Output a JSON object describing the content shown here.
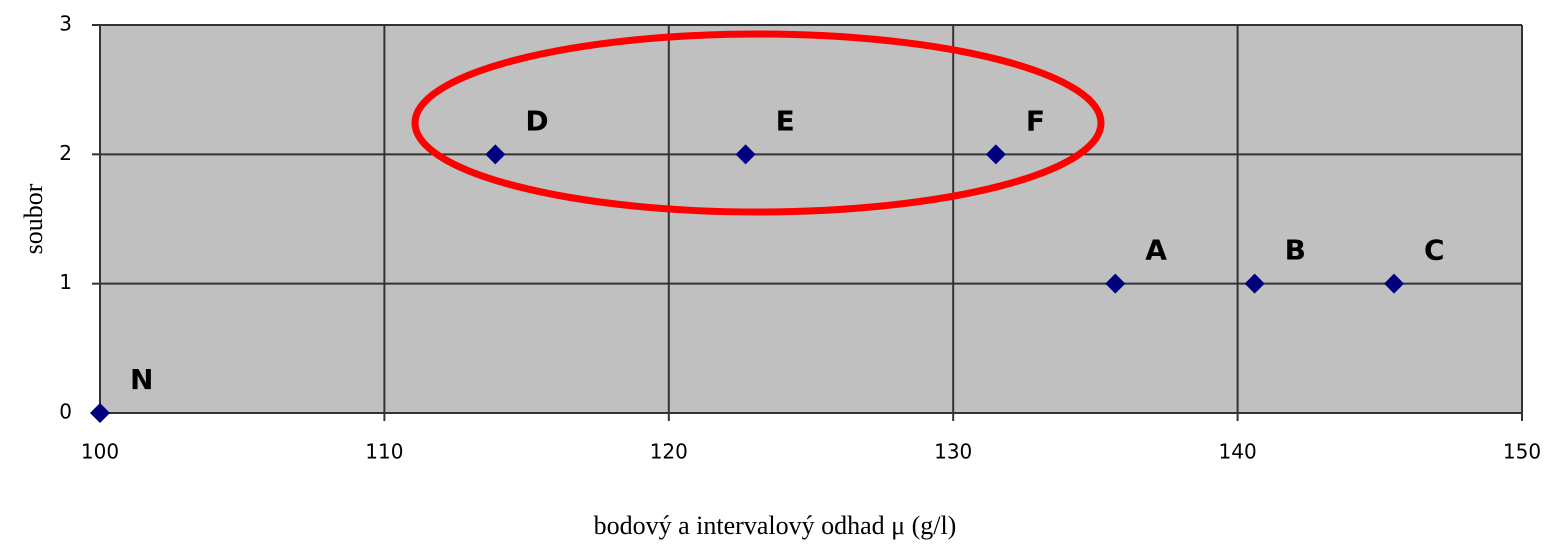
{
  "chart_data": {
    "type": "scatter",
    "x": [
      100,
      113.9,
      122.7,
      131.5,
      135.7,
      140.6,
      145.5
    ],
    "labels": [
      "N",
      "D",
      "E",
      "F",
      "A",
      "B",
      "C"
    ],
    "series": [
      {
        "color": "#00007f",
        "values": [
          0,
          2,
          2,
          2,
          1,
          1,
          1
        ]
      }
    ],
    "xlabel": "bodový a intervalový odhad μ (g/l)",
    "ylabel": "soubor",
    "xlim": [
      100,
      150
    ],
    "xticks": [
      100,
      110,
      120,
      130,
      140,
      150
    ],
    "ylim": [
      0,
      3
    ],
    "yticks": [
      0,
      1,
      2,
      3
    ],
    "grid": true,
    "background": "#c0c0c0"
  }
}
